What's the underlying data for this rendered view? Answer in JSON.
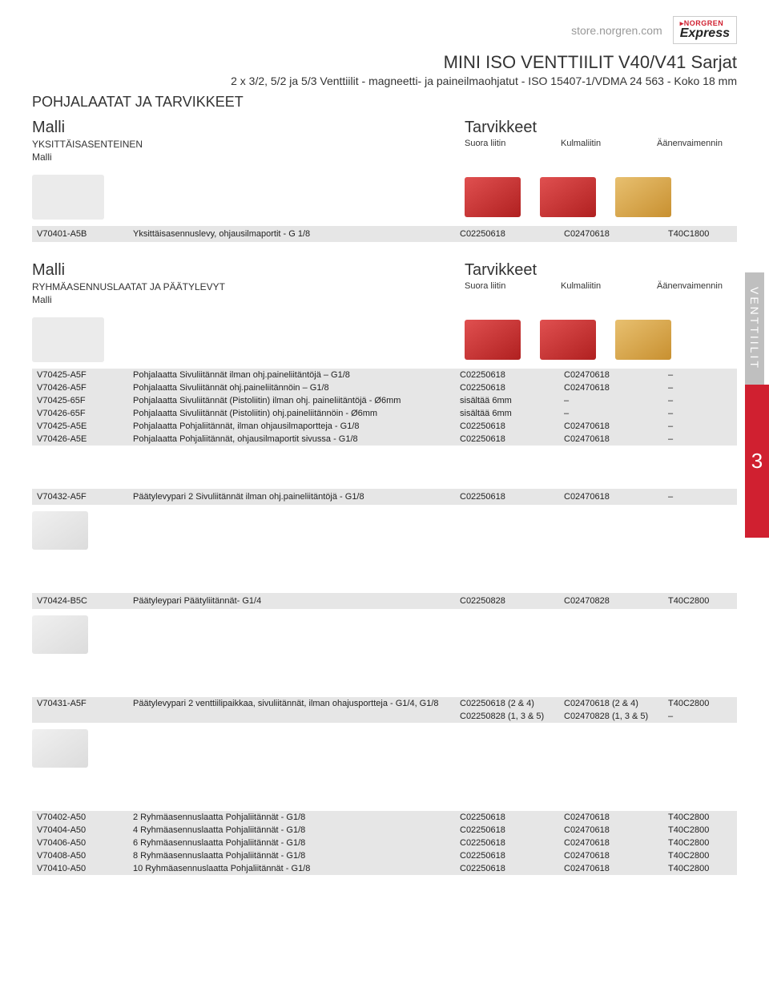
{
  "header": {
    "store_url": "store.norgren.com",
    "logo_top": "▸NORGREN",
    "logo_main": "Express"
  },
  "title": {
    "main": "MINI ISO VENTTIILIT V40/V41 Sarjat",
    "sub": "2 x 3/2, 5/2 ja 5/3 Venttiilit - magneetti- ja paineilmaohjatut - ISO 15407-1/VDMA 24 563 - Koko 18 mm"
  },
  "section_heading": "POHJALAATAT JA TARVIKKEET",
  "labels": {
    "malli": "Malli",
    "tarvikkeet": "Tarvikkeet",
    "yksittais": "YKSITTÄISASENTEINEN",
    "ryhma": "RYHMÄASENNUSLAATAT JA PÄÄTYLEVYT",
    "suora_liitin": "Suora liitin",
    "kulmaliitin": "Kulmaliitin",
    "aanenv": "Äänenvaimennin"
  },
  "side": {
    "vertical": "VENTTIILIT",
    "num": "3"
  },
  "tables": {
    "t1": {
      "rows": [
        {
          "model": "V70401-A5B",
          "desc": "Yksittäisasennuslevy, ohjausilmaportit - G 1/8",
          "a": "C02250618",
          "b": "C02470618",
          "c": "T40C1800"
        }
      ]
    },
    "t2": {
      "rows": [
        {
          "model": "V70425-A5F",
          "desc": "Pohjalaatta Sivuliitännät ilman ohj.paineliitäntöjä – G1/8",
          "a": "C02250618",
          "b": "C02470618",
          "c": "–"
        },
        {
          "model": "V70426-A5F",
          "desc": "Pohjalaatta Sivuliitännät ohj.paineliitännöin – G1/8",
          "a": "C02250618",
          "b": "C02470618",
          "c": "–"
        },
        {
          "model": "V70425-65F",
          "desc": "Pohjalaatta Sivuliitännät (Pistoliitin) ilman ohj. paineliitäntöjä - Ø6mm",
          "a": "sisältää 6mm",
          "b": "–",
          "c": "–"
        },
        {
          "model": "V70426-65F",
          "desc": "Pohjalaatta Sivuliitännät (Pistoliitin) ohj.paineliitännöin - Ø6mm",
          "a": "sisältää 6mm",
          "b": "–",
          "c": "–"
        },
        {
          "model": "V70425-A5E",
          "desc": "Pohjalaatta Pohjaliitännät, ilman ohjausilmaportteja - G1/8",
          "a": "C02250618",
          "b": "C02470618",
          "c": "–"
        },
        {
          "model": "V70426-A5E",
          "desc": "Pohjalaatta Pohjaliitännät, ohjausilmaportit sivussa - G1/8",
          "a": "C02250618",
          "b": "C02470618",
          "c": "–"
        }
      ]
    },
    "t3": {
      "rows": [
        {
          "model": "V70432-A5F",
          "desc": "Päätylevypari 2 Sivuliitännät ilman ohj.paineliitäntöjä - G1/8",
          "a": "C02250618",
          "b": "C02470618",
          "c": "–"
        }
      ]
    },
    "t4": {
      "rows": [
        {
          "model": "V70424-B5C",
          "desc": "Päätyleypari Päätyliitännät- G1/4",
          "a": "C02250828",
          "b": "C02470828",
          "c": "T40C2800"
        }
      ]
    },
    "t5": {
      "rows": [
        {
          "model": "V70431-A5F",
          "desc": "Päätylevypari 2 venttiilipaikkaa, sivuliitännät, ilman ohajusportteja - G1/4, G1/8",
          "a": "C02250618 (2 & 4)",
          "b": "C02470618 (2 & 4)",
          "c": "T40C2800"
        },
        {
          "model": "",
          "desc": "",
          "a": "C02250828 (1, 3 & 5)",
          "b": "C02470828 (1, 3 & 5)",
          "c": "–"
        }
      ]
    },
    "t6": {
      "rows": [
        {
          "model": "V70402-A50",
          "desc": "2 Ryhmäasennuslaatta Pohjaliitännät - G1/8",
          "a": "C02250618",
          "b": "C02470618",
          "c": "T40C2800"
        },
        {
          "model": "V70404-A50",
          "desc": "4 Ryhmäasennuslaatta Pohjaliitännät - G1/8",
          "a": "C02250618",
          "b": "C02470618",
          "c": "T40C2800"
        },
        {
          "model": "V70406-A50",
          "desc": "6 Ryhmäasennuslaatta Pohjaliitännät - G1/8",
          "a": "C02250618",
          "b": "C02470618",
          "c": "T40C2800"
        },
        {
          "model": "V70408-A50",
          "desc": "8 Ryhmäasennuslaatta Pohjaliitännät - G1/8",
          "a": "C02250618",
          "b": "C02470618",
          "c": "T40C2800"
        },
        {
          "model": "V70410-A50",
          "desc": "10 Ryhmäasennuslaatta Pohjaliitännät - G1/8",
          "a": "C02250618",
          "b": "C02470618",
          "c": "T40C2800"
        }
      ]
    }
  }
}
